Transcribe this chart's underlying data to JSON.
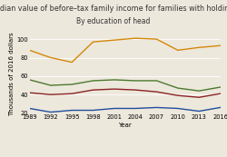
{
  "title": "Median value of before–tax family income for families with holdings",
  "subtitle": "By education of head",
  "xlabel": "Year",
  "ylabel": "Thousands of 2016 dollars",
  "years": [
    1989,
    1992,
    1995,
    1998,
    2001,
    2004,
    2007,
    2010,
    2013,
    2016
  ],
  "series": {
    "No high school diploma": {
      "values": [
        25,
        21,
        23,
        23,
        25,
        25,
        26,
        25,
        22,
        26
      ],
      "color": "#1f4e9c"
    },
    "High school diploma": {
      "values": [
        42,
        40,
        41,
        45,
        46,
        45,
        43,
        39,
        37,
        41
      ],
      "color": "#8b2323"
    },
    "Some college": {
      "values": [
        56,
        50,
        51,
        55,
        56,
        55,
        55,
        47,
        44,
        48
      ],
      "color": "#4a7a2e"
    },
    "College degree": {
      "values": [
        88,
        80,
        75,
        97,
        99,
        101,
        100,
        88,
        91,
        93
      ],
      "color": "#d4870a"
    }
  },
  "ylim": [
    20,
    105
  ],
  "yticks": [
    20,
    40,
    60,
    80,
    100
  ],
  "background_color": "#ede8dc",
  "title_fontsize": 5.8,
  "axis_label_fontsize": 5.0,
  "tick_fontsize": 4.8,
  "legend_fontsize": 4.8,
  "linewidth": 1.0
}
